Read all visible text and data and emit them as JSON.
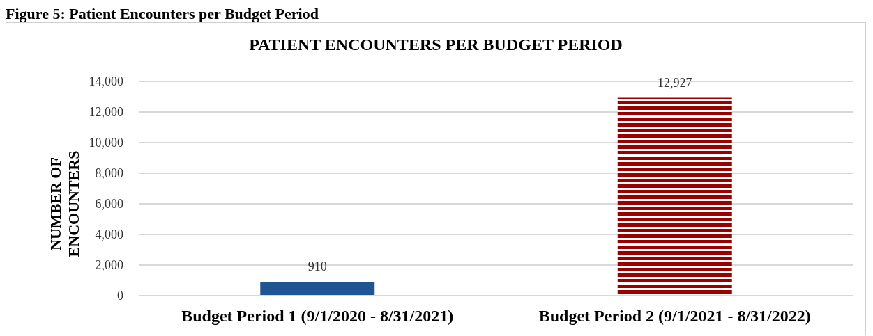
{
  "chart_data": {
    "type": "bar",
    "title": "PATIENT ENCOUNTERS PER BUDGET PERIOD",
    "ylabel": "NUMBER OF ENCOUNTERS",
    "annotations": [
      "Figure 5: Patient Encounters per Budget Period"
    ],
    "categories": [
      "Budget Period 1 (9/1/2020 - 8/31/2021)",
      "Budget Period 2 (9/1/2021 - 8/31/2022)"
    ],
    "values": [
      910,
      12927
    ],
    "value_labels": [
      "910",
      "12,927"
    ],
    "colors": [
      "#1f5592",
      "#9b0000"
    ],
    "ylim": [
      0,
      14000
    ],
    "yticks": [
      0,
      {
        "value": 2000,
        "label": "2,000"
      },
      {
        "value": 4000,
        "label": "4,000"
      },
      {
        "value": 6000,
        "label": "6,000"
      },
      {
        "value": 8000,
        "label": "8,000"
      },
      {
        "value": 10000,
        "label": "10,000"
      },
      {
        "value": 12000,
        "label": "12,000"
      },
      {
        "value": 14000,
        "label": "14,000"
      }
    ],
    "grid": "y"
  }
}
